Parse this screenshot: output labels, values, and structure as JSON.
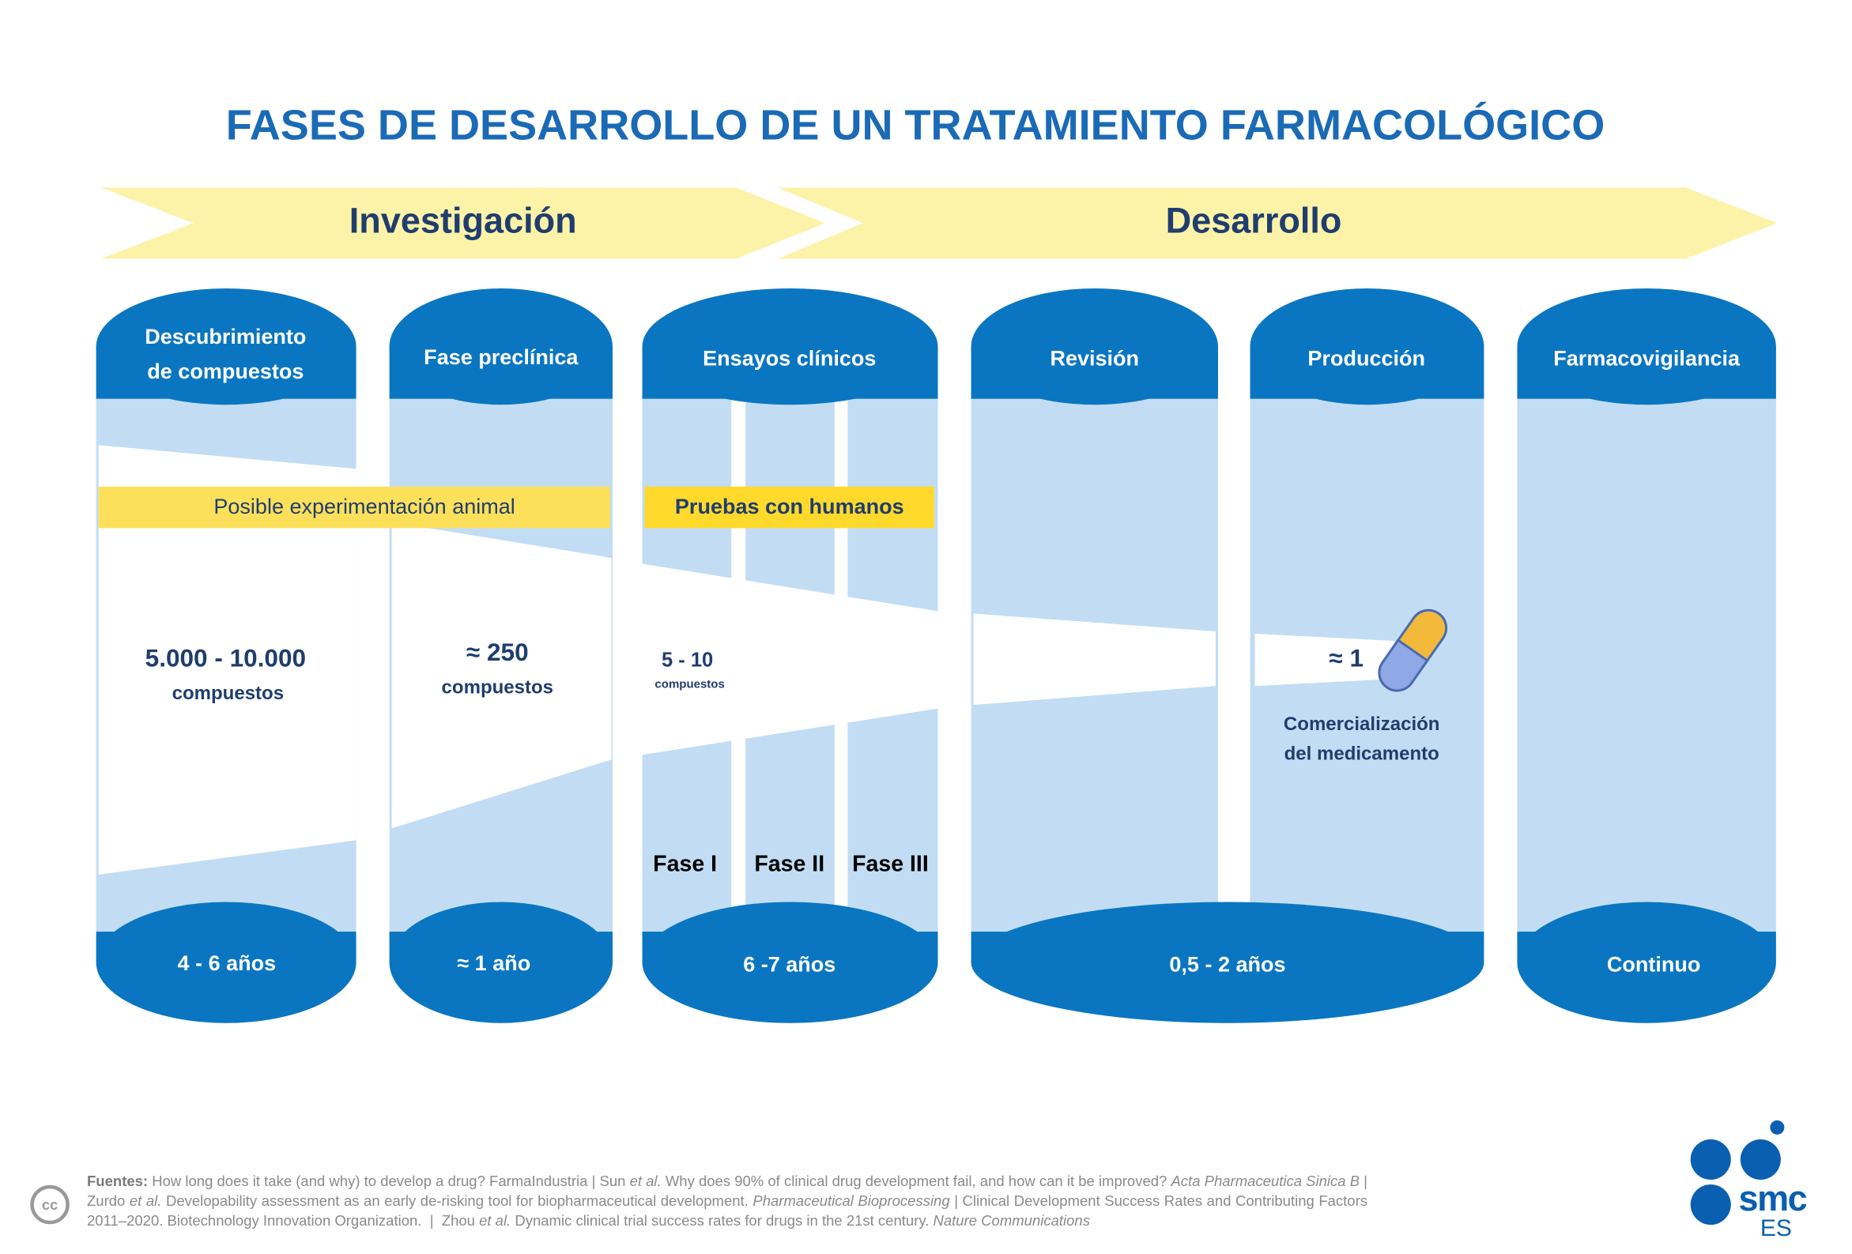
{
  "title": "FASES DE DESARROLLO DE UN TRATAMIENTO FARMACOLÓGICO",
  "stages": [
    "Investigación",
    "Desarrollo"
  ],
  "columns": [
    {
      "header": [
        "Descubrimiento",
        "de compuestos"
      ]
    },
    {
      "header": [
        "Fase preclínica"
      ]
    },
    {
      "header": [
        "Ensayos clínicos"
      ]
    },
    {
      "header": [
        "Revisión"
      ]
    },
    {
      "header": [
        "Producción"
      ]
    },
    {
      "header": [
        "Farmacovigilancia"
      ]
    }
  ],
  "durations": [
    "4 - 6 años",
    "≈ 1 año",
    "6 -7 años",
    "0,5 - 2 años",
    "Continuo"
  ],
  "banners": [
    "Posible experimentación animal",
    "Pruebas con humanos"
  ],
  "counts": [
    {
      "value": "5.000 - 10.000",
      "unit": "compuestos"
    },
    {
      "value": "≈ 250",
      "unit": "compuestos"
    },
    {
      "value": "5 - 10",
      "unit": "compuestos"
    },
    {
      "value": "≈ 1"
    }
  ],
  "phases": [
    "Fase I",
    "Fase II",
    "Fase III"
  ],
  "outcome": [
    "Comercialización",
    "del medicamento"
  ],
  "footer": {
    "label": "Fuentes:",
    "sources": [
      {
        "text": " How long does it take (and why) to develop a drug? FarmaIndustria | Sun "
      },
      {
        "text": "et al.",
        "italic": true
      },
      {
        "text": " Why does 90% of clinical drug development fail, and how can it be improved? "
      },
      {
        "text": "Acta Pharmaceutica Sinica B",
        "italic": true
      },
      {
        "text": " | Zurdo "
      },
      {
        "text": "et al.",
        "italic": true
      },
      {
        "text": " Developability assessment as an early de-risking tool for biopharmaceutical development. "
      },
      {
        "text": "Pharmaceutical Bioprocessing",
        "italic": true
      },
      {
        "text": " | Clinical Development Success Rates and Contributing Factors 2011–2020. Biotechnology Innovation Organization.  |  Zhou "
      },
      {
        "text": "et al.",
        "italic": true
      },
      {
        "text": " Dynamic clinical trial success rates for drugs in the 21st century. "
      },
      {
        "text": "Nature Communications",
        "italic": true
      }
    ]
  },
  "logo": {
    "name": "smc",
    "region": "ES"
  },
  "license": "cc"
}
